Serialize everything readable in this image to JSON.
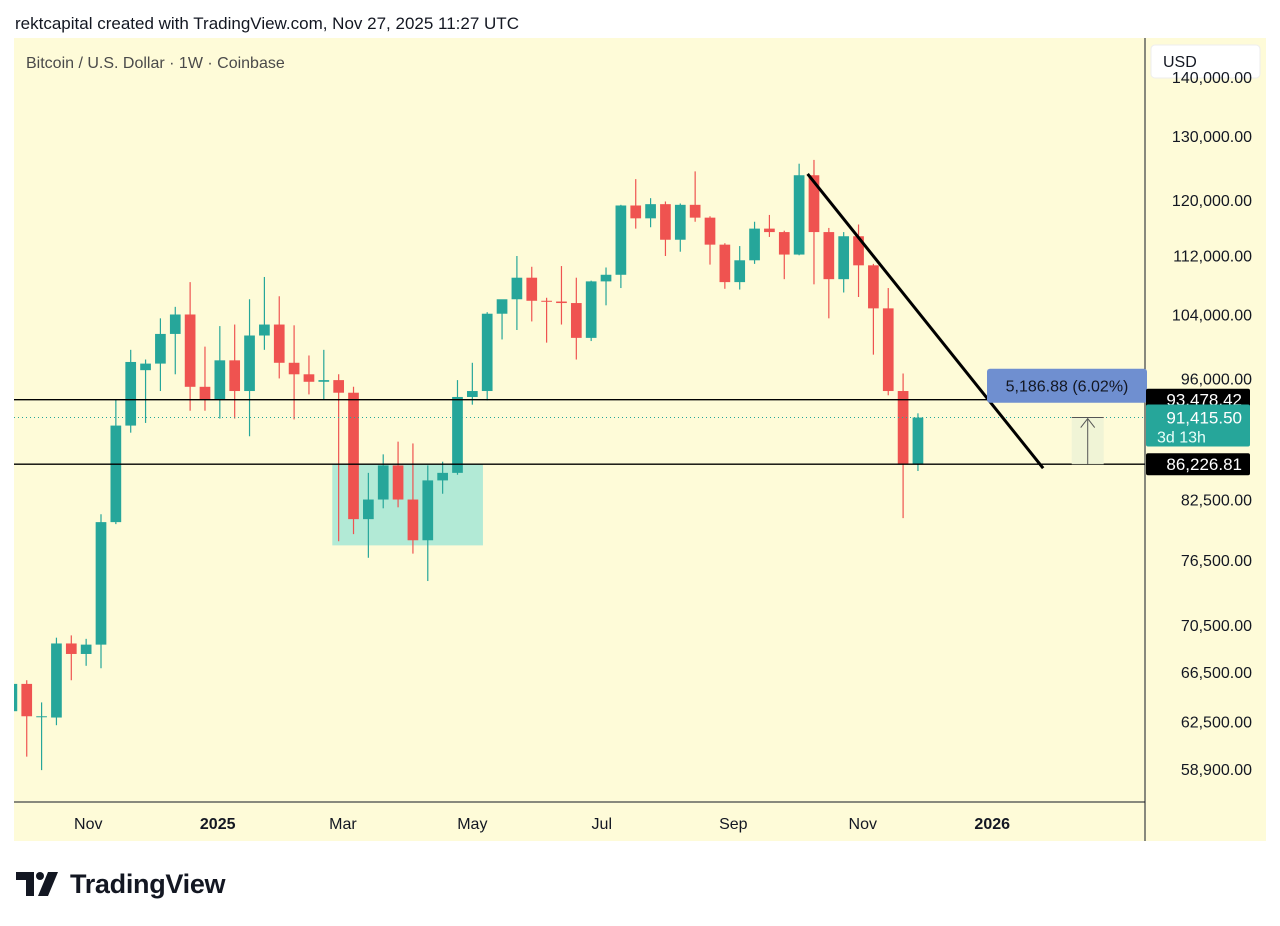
{
  "header": {
    "text": "rektcapital created with TradingView.com, Nov 27, 2025 11:27 UTC"
  },
  "brand": {
    "name": "TradingView"
  },
  "chart_data": {
    "type": "candlestick",
    "title": "Bitcoin / U.S. Dollar · 1W · Coinbase",
    "currency": "USD",
    "y_scale": "log",
    "ylim": [
      56500,
      147000
    ],
    "x_range": [
      "2024-09-27",
      "2026-03-14"
    ],
    "y_ticks": [
      {
        "value": 140000,
        "label": "140,000.00"
      },
      {
        "value": 130000,
        "label": "130,000.00"
      },
      {
        "value": 120000,
        "label": "120,000.00"
      },
      {
        "value": 112000,
        "label": "112,000.00"
      },
      {
        "value": 104000,
        "label": "104,000.00"
      },
      {
        "value": 96000,
        "label": "96,000.00"
      },
      {
        "value": 82500,
        "label": "82,500.00"
      },
      {
        "value": 76500,
        "label": "76,500.00"
      },
      {
        "value": 70500,
        "label": "70,500.00"
      },
      {
        "value": 66500,
        "label": "66,500.00"
      },
      {
        "value": 62500,
        "label": "62,500.00"
      },
      {
        "value": 58900,
        "label": "58,900.00"
      }
    ],
    "x_ticks": [
      {
        "date": "2024-11-01",
        "label": "Nov",
        "bold": false
      },
      {
        "date": "2025-01-01",
        "label": "2025",
        "bold": true
      },
      {
        "date": "2025-03-01",
        "label": "Mar",
        "bold": false
      },
      {
        "date": "2025-05-01",
        "label": "May",
        "bold": false
      },
      {
        "date": "2025-07-01",
        "label": "Jul",
        "bold": false
      },
      {
        "date": "2025-09-01",
        "label": "Sep",
        "bold": false
      },
      {
        "date": "2025-11-01",
        "label": "Nov",
        "bold": false
      },
      {
        "date": "2026-01-01",
        "label": "2026",
        "bold": true
      }
    ],
    "candles": [
      {
        "date": "2024-09-23",
        "o": 63300,
        "h": 66000,
        "l": 62800,
        "c": 65500
      },
      {
        "date": "2024-09-30",
        "o": 65500,
        "h": 65800,
        "l": 59800,
        "c": 62900
      },
      {
        "date": "2024-10-07",
        "o": 62900,
        "h": 64000,
        "l": 58800,
        "c": 62900
      },
      {
        "date": "2024-10-14",
        "o": 62800,
        "h": 69400,
        "l": 62200,
        "c": 68900
      },
      {
        "date": "2024-10-21",
        "o": 68900,
        "h": 69600,
        "l": 65800,
        "c": 68000
      },
      {
        "date": "2024-10-28",
        "o": 68000,
        "h": 69300,
        "l": 67000,
        "c": 68800
      },
      {
        "date": "2024-11-04",
        "o": 68800,
        "h": 81000,
        "l": 66800,
        "c": 80200
      },
      {
        "date": "2024-11-11",
        "o": 80200,
        "h": 93500,
        "l": 80000,
        "c": 90500
      },
      {
        "date": "2024-11-18",
        "o": 90500,
        "h": 99500,
        "l": 89700,
        "c": 98000
      },
      {
        "date": "2024-11-25",
        "o": 97000,
        "h": 98300,
        "l": 90800,
        "c": 97800
      },
      {
        "date": "2024-12-02",
        "o": 97800,
        "h": 103500,
        "l": 94500,
        "c": 101500
      },
      {
        "date": "2024-12-09",
        "o": 101500,
        "h": 105000,
        "l": 96500,
        "c": 104000
      },
      {
        "date": "2024-12-16",
        "o": 104000,
        "h": 108300,
        "l": 92200,
        "c": 95000
      },
      {
        "date": "2024-12-23",
        "o": 95000,
        "h": 99900,
        "l": 92200,
        "c": 93500
      },
      {
        "date": "2024-12-30",
        "o": 93500,
        "h": 102500,
        "l": 91300,
        "c": 98200
      },
      {
        "date": "2025-01-06",
        "o": 98200,
        "h": 102700,
        "l": 91300,
        "c": 94500
      },
      {
        "date": "2025-01-13",
        "o": 94500,
        "h": 106000,
        "l": 89300,
        "c": 101300
      },
      {
        "date": "2025-01-20",
        "o": 101300,
        "h": 109000,
        "l": 99500,
        "c": 102700
      },
      {
        "date": "2025-01-27",
        "o": 102700,
        "h": 106400,
        "l": 96000,
        "c": 97900
      },
      {
        "date": "2025-02-03",
        "o": 97900,
        "h": 102600,
        "l": 91200,
        "c": 96500
      },
      {
        "date": "2025-02-10",
        "o": 96500,
        "h": 98800,
        "l": 94100,
        "c": 95600
      },
      {
        "date": "2025-02-17",
        "o": 95600,
        "h": 99500,
        "l": 93500,
        "c": 95800
      },
      {
        "date": "2025-02-24",
        "o": 95800,
        "h": 96500,
        "l": 78300,
        "c": 94300
      },
      {
        "date": "2025-03-03",
        "o": 94300,
        "h": 95000,
        "l": 79000,
        "c": 80500
      },
      {
        "date": "2025-03-10",
        "o": 80500,
        "h": 85300,
        "l": 76700,
        "c": 82500
      },
      {
        "date": "2025-03-17",
        "o": 82500,
        "h": 87300,
        "l": 81600,
        "c": 86100
      },
      {
        "date": "2025-03-24",
        "o": 86100,
        "h": 88700,
        "l": 81700,
        "c": 82500
      },
      {
        "date": "2025-03-31",
        "o": 82500,
        "h": 88500,
        "l": 77100,
        "c": 78400
      },
      {
        "date": "2025-04-07",
        "o": 78400,
        "h": 86100,
        "l": 74500,
        "c": 84500
      },
      {
        "date": "2025-04-14",
        "o": 84500,
        "h": 86500,
        "l": 83100,
        "c": 85300
      },
      {
        "date": "2025-04-21",
        "o": 85300,
        "h": 95800,
        "l": 85100,
        "c": 93800
      },
      {
        "date": "2025-04-28",
        "o": 93800,
        "h": 97900,
        "l": 92900,
        "c": 94500
      },
      {
        "date": "2025-05-05",
        "o": 94500,
        "h": 104300,
        "l": 93400,
        "c": 104100
      },
      {
        "date": "2025-05-12",
        "o": 104100,
        "h": 105800,
        "l": 100800,
        "c": 106000
      },
      {
        "date": "2025-05-19",
        "o": 106000,
        "h": 111900,
        "l": 102000,
        "c": 108900
      },
      {
        "date": "2025-05-26",
        "o": 108900,
        "h": 110400,
        "l": 103100,
        "c": 105800
      },
      {
        "date": "2025-06-02",
        "o": 105800,
        "h": 106200,
        "l": 100400,
        "c": 105700
      },
      {
        "date": "2025-06-09",
        "o": 105700,
        "h": 110500,
        "l": 102700,
        "c": 105500
      },
      {
        "date": "2025-06-16",
        "o": 105500,
        "h": 108900,
        "l": 98300,
        "c": 101000
      },
      {
        "date": "2025-06-23",
        "o": 101000,
        "h": 108500,
        "l": 100600,
        "c": 108400
      },
      {
        "date": "2025-06-30",
        "o": 108400,
        "h": 110300,
        "l": 105200,
        "c": 109300
      },
      {
        "date": "2025-07-07",
        "o": 109300,
        "h": 119300,
        "l": 107500,
        "c": 119200
      },
      {
        "date": "2025-07-14",
        "o": 119200,
        "h": 123200,
        "l": 115800,
        "c": 117300
      },
      {
        "date": "2025-07-21",
        "o": 117300,
        "h": 120300,
        "l": 116000,
        "c": 119400
      },
      {
        "date": "2025-07-28",
        "o": 119400,
        "h": 119800,
        "l": 111900,
        "c": 114200
      },
      {
        "date": "2025-08-04",
        "o": 114200,
        "h": 119500,
        "l": 112500,
        "c": 119300
      },
      {
        "date": "2025-08-11",
        "o": 119300,
        "h": 124400,
        "l": 116800,
        "c": 117400
      },
      {
        "date": "2025-08-18",
        "o": 117400,
        "h": 117600,
        "l": 110700,
        "c": 113500
      },
      {
        "date": "2025-08-25",
        "o": 113500,
        "h": 113700,
        "l": 107400,
        "c": 108300
      },
      {
        "date": "2025-09-01",
        "o": 108300,
        "h": 113300,
        "l": 107300,
        "c": 111300
      },
      {
        "date": "2025-09-08",
        "o": 111300,
        "h": 116800,
        "l": 110800,
        "c": 115800
      },
      {
        "date": "2025-09-15",
        "o": 115800,
        "h": 117800,
        "l": 114600,
        "c": 115300
      },
      {
        "date": "2025-09-22",
        "o": 115300,
        "h": 115500,
        "l": 108700,
        "c": 112100
      },
      {
        "date": "2025-09-29",
        "o": 112100,
        "h": 125600,
        "l": 112000,
        "c": 123800
      },
      {
        "date": "2025-10-06",
        "o": 123800,
        "h": 126200,
        "l": 108000,
        "c": 115300
      },
      {
        "date": "2025-10-13",
        "o": 115300,
        "h": 115900,
        "l": 103500,
        "c": 108700
      },
      {
        "date": "2025-10-20",
        "o": 108700,
        "h": 115300,
        "l": 106900,
        "c": 114700
      },
      {
        "date": "2025-10-27",
        "o": 114700,
        "h": 116400,
        "l": 106300,
        "c": 110600
      },
      {
        "date": "2025-11-03",
        "o": 110600,
        "h": 110800,
        "l": 98900,
        "c": 104800
      },
      {
        "date": "2025-11-10",
        "o": 104800,
        "h": 107500,
        "l": 94000,
        "c": 94500
      },
      {
        "date": "2025-11-17",
        "o": 94500,
        "h": 96600,
        "l": 80600,
        "c": 86200
      },
      {
        "date": "2025-11-24",
        "o": 86200,
        "h": 91900,
        "l": 85500,
        "c": 91415.5
      }
    ],
    "horizontal_levels": [
      {
        "price": 93478.42,
        "label": "93,478.42"
      },
      {
        "price": 86226.81,
        "label": "86,226.81"
      }
    ],
    "current_price": {
      "price": 91415.5,
      "label": "91,415.50",
      "countdown": "3d 13h"
    },
    "measure": {
      "label": "5,186.88 (6.02%)",
      "date": "2026-02-15"
    },
    "zone": {
      "from_date": "2025-02-24",
      "to_date": "2025-05-06",
      "top": 86226.81,
      "bottom": 77900
    },
    "trendline": {
      "start": {
        "date": "2025-10-06",
        "price": 124000
      },
      "end": {
        "date": "2026-01-25",
        "price": 85800
      }
    },
    "colors": {
      "up": "#26a69a",
      "down": "#ef5350",
      "bg": "#fefbd8",
      "zone": "#b2ead6",
      "badge": "#000000",
      "price_badge": "#26a69a",
      "measure_badge": "#6f8fd0"
    }
  }
}
